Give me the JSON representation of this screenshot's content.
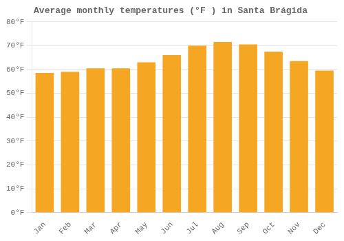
{
  "chart_data": {
    "type": "bar",
    "title": "Average monthly temperatures (°F ) in Santa Brágida",
    "categories": [
      "Jan",
      "Feb",
      "Mar",
      "Apr",
      "May",
      "Jun",
      "Jul",
      "Aug",
      "Sep",
      "Oct",
      "Nov",
      "Dec"
    ],
    "values": [
      58.5,
      59.0,
      60.5,
      60.5,
      63.0,
      66.0,
      70.0,
      71.5,
      70.5,
      67.5,
      63.5,
      59.5
    ],
    "color": "#F5A623",
    "ylim": [
      0,
      80
    ],
    "yticks": [
      {
        "value": 0,
        "label": "0°F"
      },
      {
        "value": 10,
        "label": "10°F"
      },
      {
        "value": 20,
        "label": "20°F"
      },
      {
        "value": 30,
        "label": "30°F"
      },
      {
        "value": 40,
        "label": "40°F"
      },
      {
        "value": 50,
        "label": "50°F"
      },
      {
        "value": 60,
        "label": "60°F"
      },
      {
        "value": 70,
        "label": "70°F"
      },
      {
        "value": 80,
        "label": "80°F"
      }
    ],
    "grid": true
  }
}
